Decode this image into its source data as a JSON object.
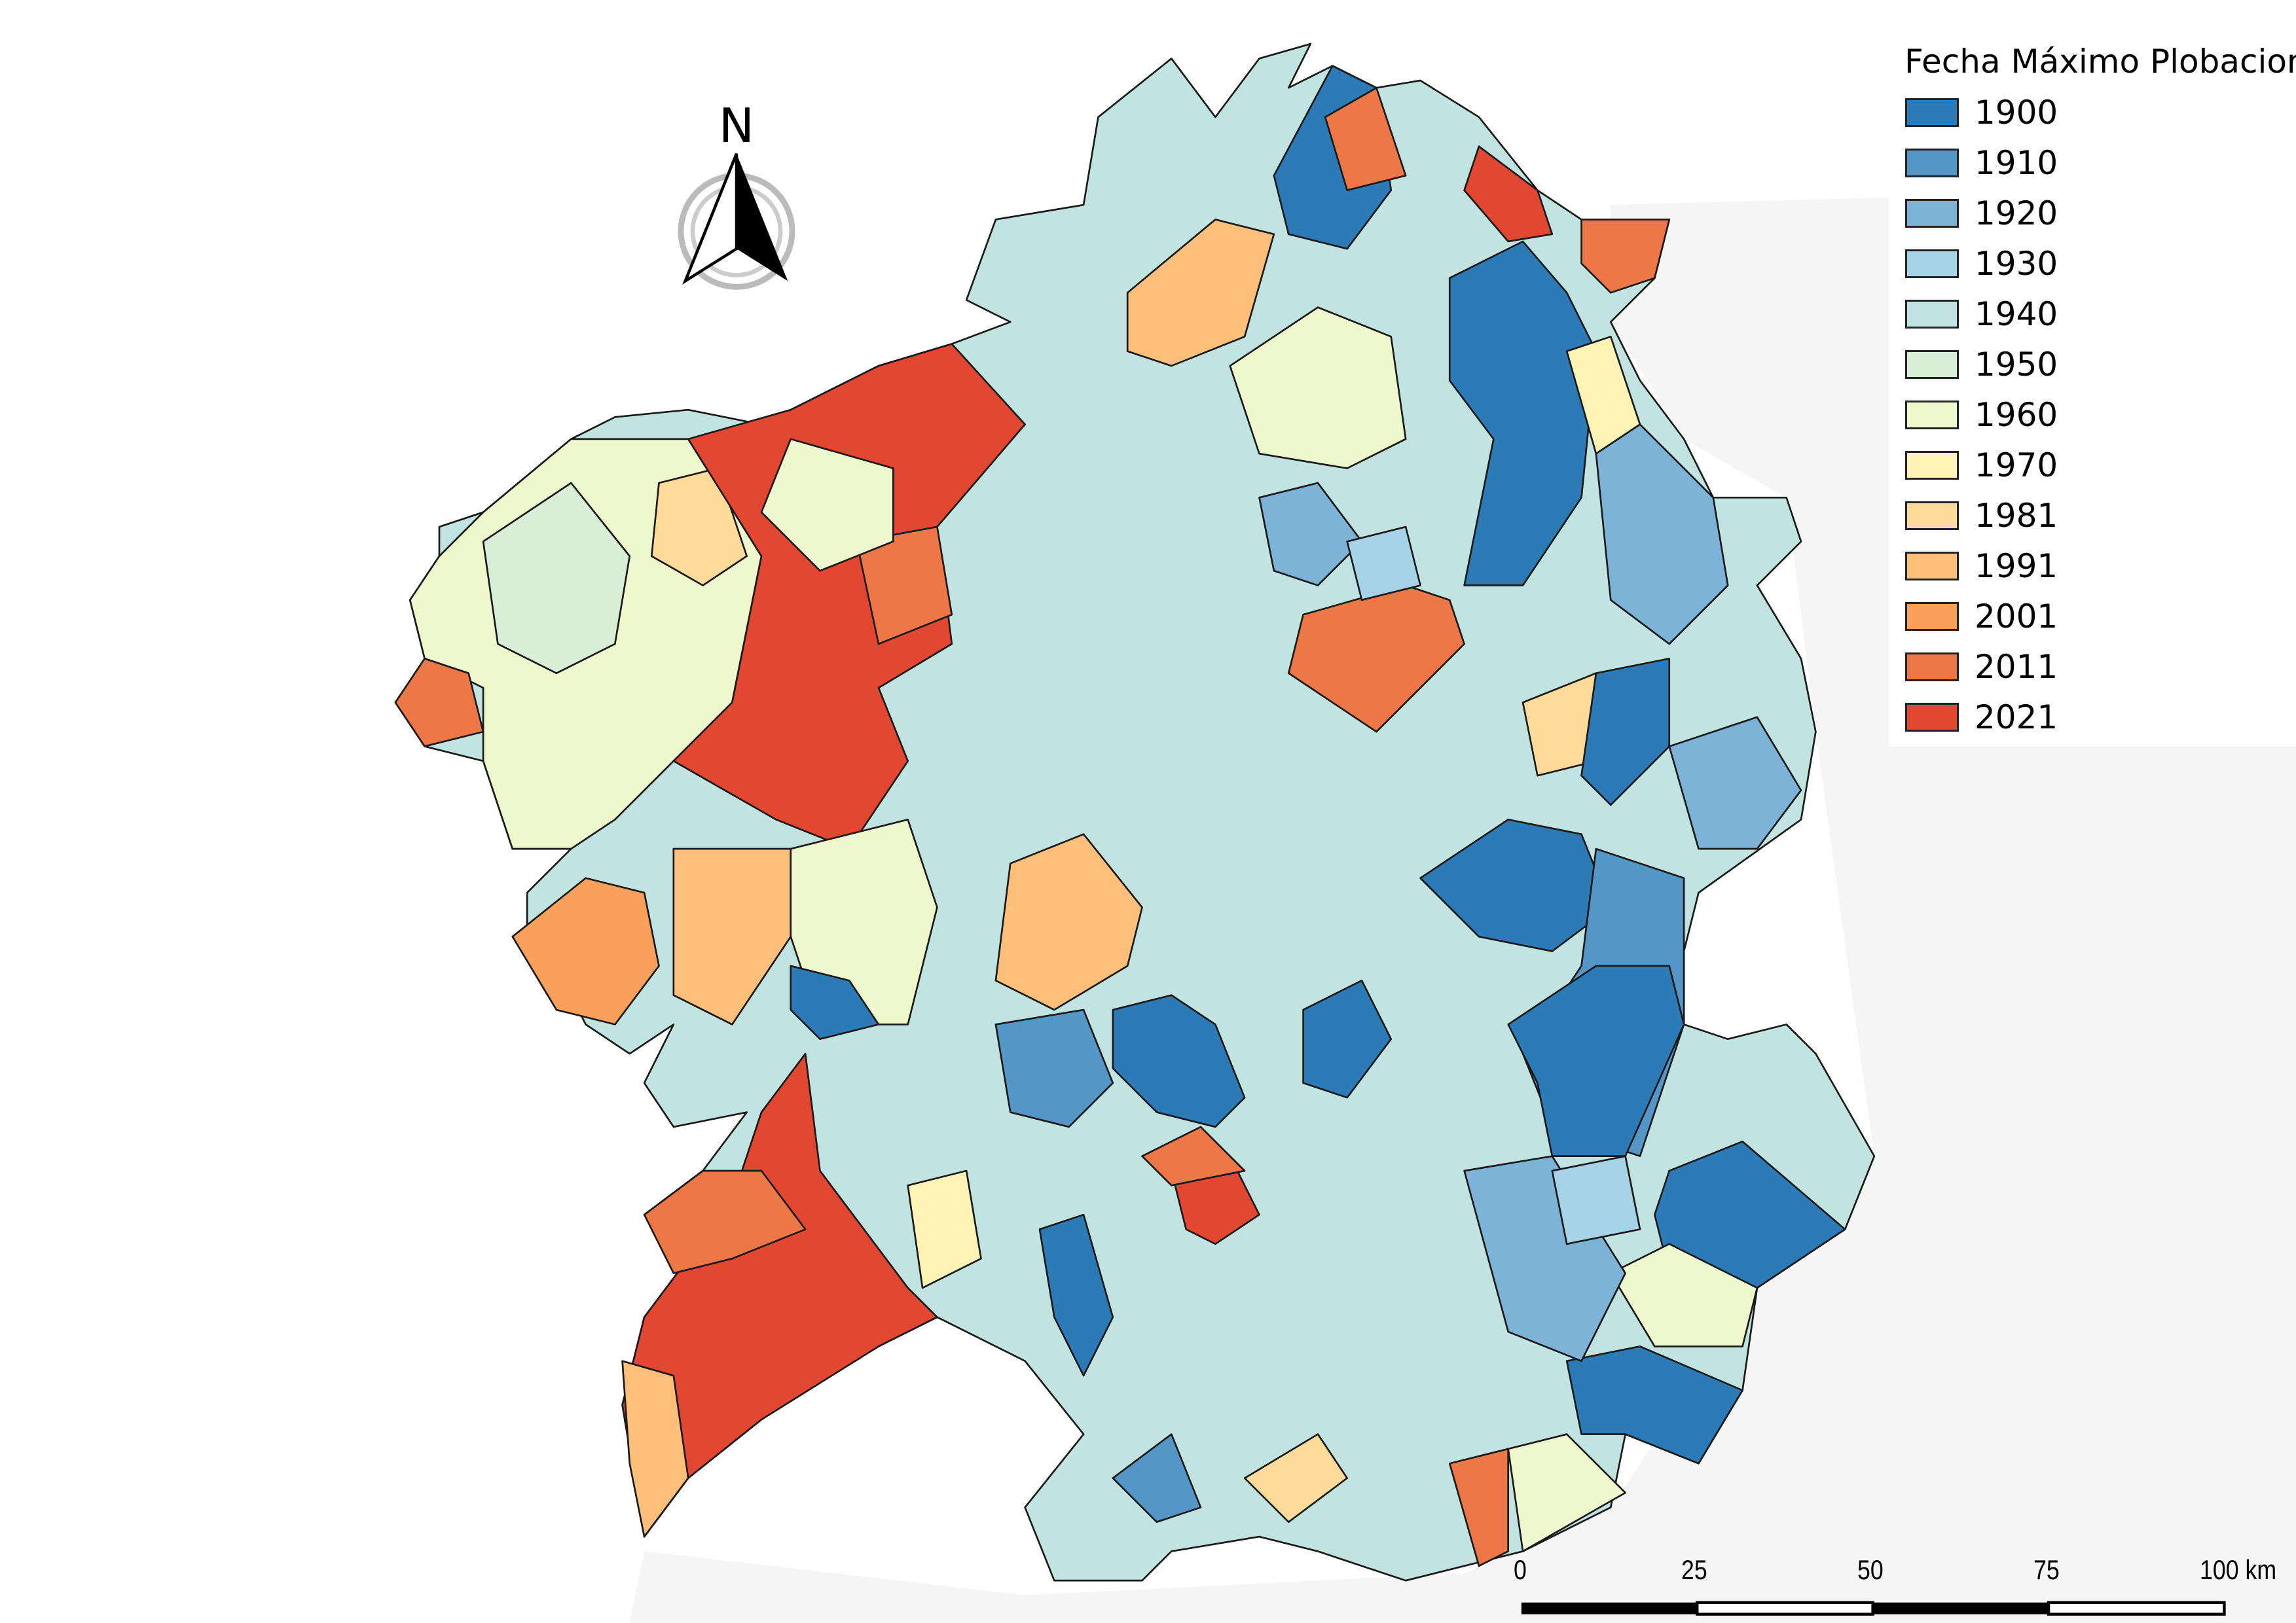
{
  "legend": {
    "title": "Fecha Máximo Plobacional",
    "items": [
      {
        "label": "1900",
        "color": "#2c7bb6"
      },
      {
        "label": "1910",
        "color": "#5497c6"
      },
      {
        "label": "1920",
        "color": "#7db3d6"
      },
      {
        "label": "1930",
        "color": "#a6d3e6"
      },
      {
        "label": "1940",
        "color": "#c2e4e1"
      },
      {
        "label": "1950",
        "color": "#d8eed7"
      },
      {
        "label": "1960",
        "color": "#eff8cc"
      },
      {
        "label": "1970",
        "color": "#fff3b5"
      },
      {
        "label": "1981",
        "color": "#fedb98"
      },
      {
        "label": "1991",
        "color": "#fdbf79"
      },
      {
        "label": "2001",
        "color": "#f9a05b"
      },
      {
        "label": "2011",
        "color": "#ed7747"
      },
      {
        "label": "2021",
        "color": "#e24732"
      }
    ]
  },
  "north_arrow": {
    "label": "N"
  },
  "scale_bar": {
    "labels": [
      "0",
      "25",
      "50",
      "75",
      "100 km"
    ]
  }
}
